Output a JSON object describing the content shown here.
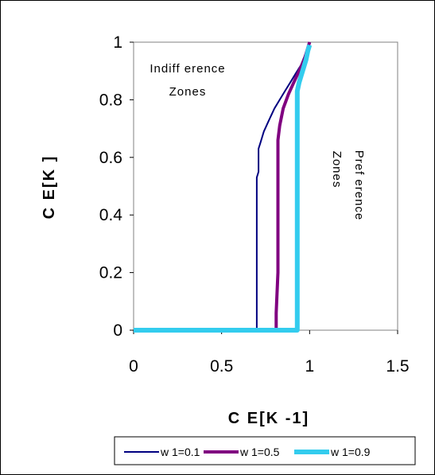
{
  "chart_data": {
    "type": "line",
    "title": "",
    "xlabel": "C E[K -1]",
    "ylabel": "C E[K ]",
    "xlim": [
      0,
      1.5
    ],
    "ylim": [
      0,
      1
    ],
    "x_ticks": [
      "0",
      "0.5",
      "1",
      "1.5"
    ],
    "y_ticks": [
      "0",
      "0.2",
      "0.4",
      "0.6",
      "0.8",
      "1"
    ],
    "x_tick_values": [
      0,
      0.5,
      1,
      1.5
    ],
    "y_tick_values": [
      0,
      0.2,
      0.4,
      0.6,
      0.8,
      1
    ],
    "grid": false,
    "legend_position": "bottom",
    "annotations": [
      {
        "lines": [
          "Indiff erence",
          "Zones"
        ],
        "rotation": 0
      },
      {
        "lines": [
          "Pref erence",
          "Zones"
        ],
        "rotation": 90
      }
    ],
    "series": [
      {
        "name": "w 1=0.1",
        "color": "#000080",
        "points": [
          [
            0,
            0
          ],
          [
            0.7,
            0
          ],
          [
            0.7,
            0.53
          ],
          [
            0.71,
            0.55
          ],
          [
            0.71,
            0.63
          ],
          [
            0.72,
            0.65
          ],
          [
            0.74,
            0.69
          ],
          [
            0.77,
            0.73
          ],
          [
            0.8,
            0.77
          ],
          [
            0.83,
            0.8
          ],
          [
            0.86,
            0.83
          ],
          [
            0.89,
            0.86
          ],
          [
            0.92,
            0.89
          ],
          [
            0.95,
            0.92
          ],
          [
            0.97,
            0.95
          ],
          [
            0.99,
            0.98
          ],
          [
            1.0,
            1.0
          ]
        ]
      },
      {
        "name": "w 1=0.5",
        "color": "#800080",
        "points": [
          [
            0,
            0
          ],
          [
            0.81,
            0
          ],
          [
            0.81,
            0.06
          ],
          [
            0.82,
            0.2
          ],
          [
            0.82,
            0.66
          ],
          [
            0.83,
            0.71
          ],
          [
            0.85,
            0.77
          ],
          [
            0.88,
            0.82
          ],
          [
            0.91,
            0.86
          ],
          [
            0.94,
            0.9
          ],
          [
            0.97,
            0.94
          ],
          [
            0.99,
            0.98
          ],
          [
            1.0,
            1.0
          ]
        ]
      },
      {
        "name": "w 1=0.9",
        "color": "#33CCEE",
        "points": [
          [
            0,
            0
          ],
          [
            0.93,
            0
          ],
          [
            0.93,
            0.83
          ],
          [
            0.94,
            0.86
          ],
          [
            0.96,
            0.9
          ],
          [
            0.98,
            0.94
          ],
          [
            0.99,
            0.97
          ],
          [
            1.0,
            0.99
          ]
        ]
      }
    ]
  }
}
